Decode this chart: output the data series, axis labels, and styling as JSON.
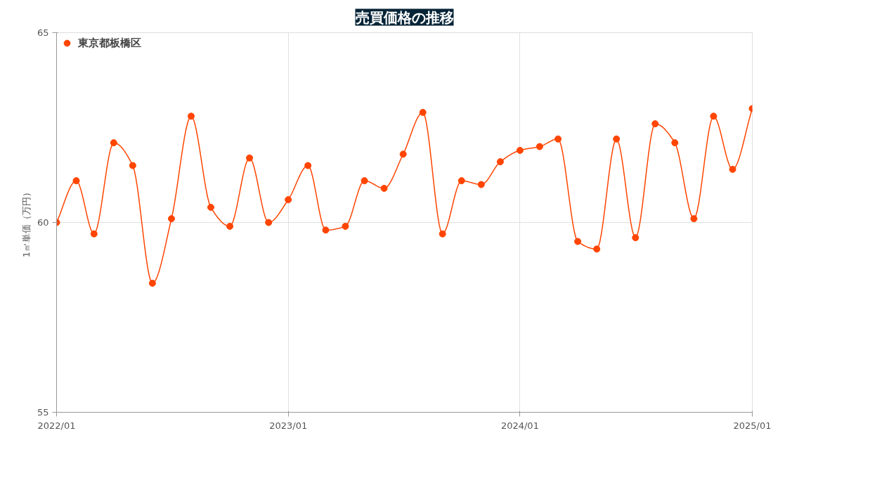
{
  "chart_data": {
    "type": "line",
    "title": "売買価格の推移",
    "ylabel": "1㎡単価（万円）",
    "x": [
      "2022-01",
      "2022-02",
      "2022-03",
      "2022-04",
      "2022-05",
      "2022-06",
      "2022-07",
      "2022-08",
      "2022-09",
      "2022-10",
      "2022-11",
      "2022-12",
      "2023-01",
      "2023-02",
      "2023-03",
      "2023-04",
      "2023-05",
      "2023-06",
      "2023-07",
      "2023-08",
      "2023-09",
      "2023-10",
      "2023-11",
      "2023-12",
      "2024-01",
      "2024-02",
      "2024-03",
      "2024-04",
      "2024-05",
      "2024-06",
      "2024-07",
      "2024-08",
      "2024-09",
      "2024-10",
      "2024-11",
      "2024-12",
      "2025-01"
    ],
    "series": [
      {
        "name": "東京都板橋区",
        "color": "#ff4500",
        "values": [
          60.0,
          61.1,
          59.7,
          62.1,
          61.5,
          58.4,
          60.1,
          62.8,
          60.4,
          59.9,
          61.7,
          60.0,
          60.6,
          61.5,
          59.8,
          59.9,
          61.1,
          60.9,
          61.8,
          62.9,
          59.7,
          61.1,
          61.0,
          61.6,
          61.9,
          62.0,
          62.2,
          59.5,
          59.3,
          62.2,
          59.6,
          62.6,
          62.1,
          60.1,
          62.8,
          61.4,
          63.0
        ]
      }
    ],
    "xlim": [
      "2022-01",
      "2025-01"
    ],
    "xticks": [
      {
        "value": "2022-01",
        "label": "2022/01"
      },
      {
        "value": "2023-01",
        "label": "2023/01"
      },
      {
        "value": "2024-01",
        "label": "2024/01"
      },
      {
        "value": "2025-01",
        "label": "2025/01"
      }
    ],
    "ylim": [
      55,
      65
    ],
    "yticks": [
      55,
      60,
      65
    ],
    "grid": true,
    "legend": "top left",
    "marker": "circle",
    "line_style": "solid"
  }
}
